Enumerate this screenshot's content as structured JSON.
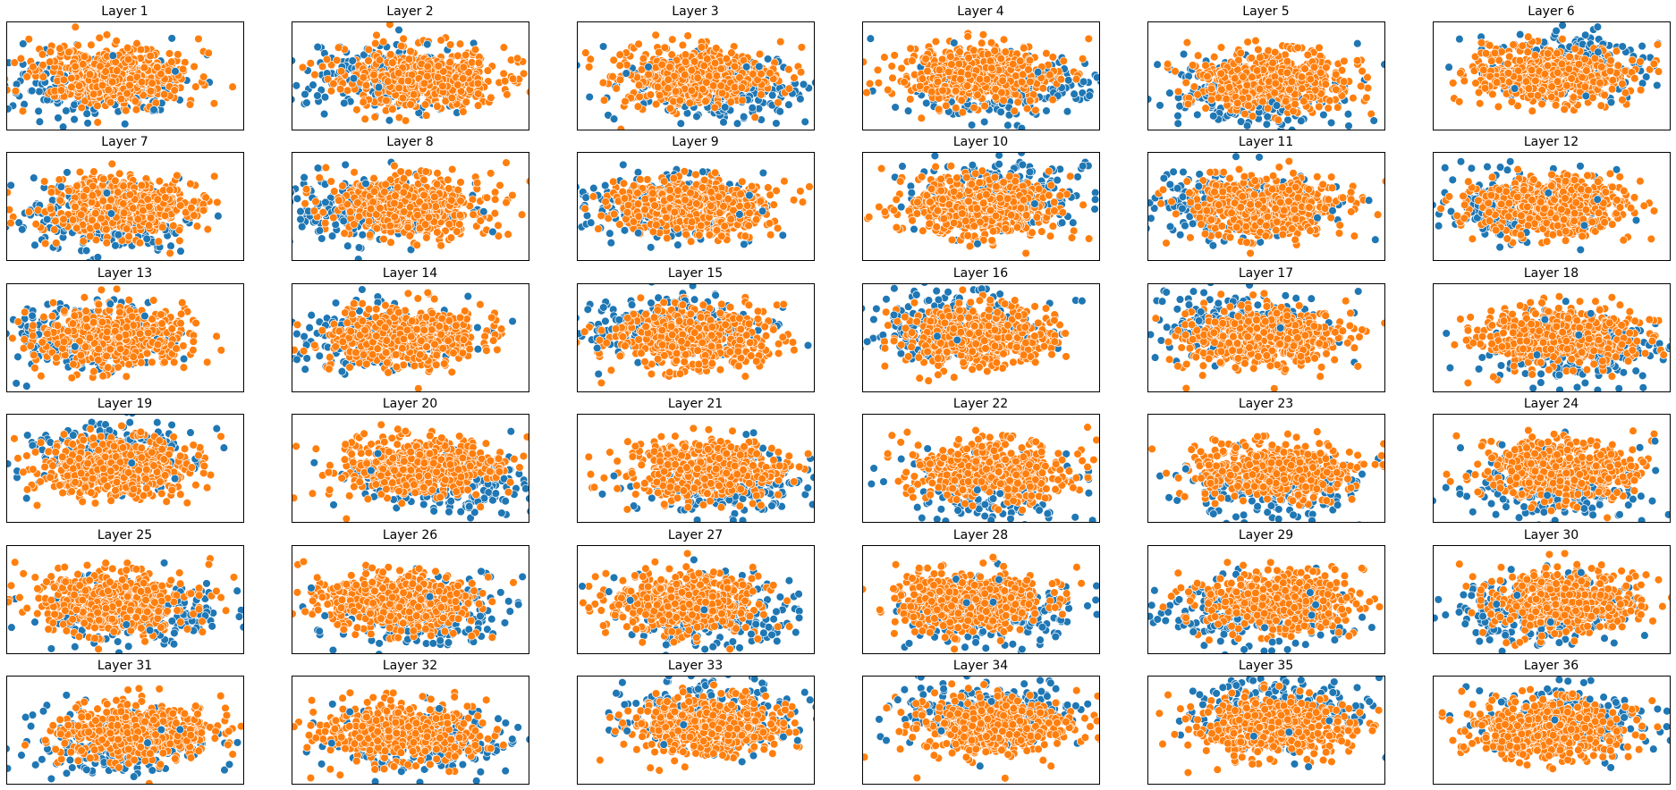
{
  "figure": {
    "colors": {
      "class_a": "#1f77b4",
      "class_b": "#ff7f0e",
      "marker_edge": "#ffffff"
    },
    "marker": "circle-with-white-edge",
    "axes_ticks": "hidden",
    "grid": "off",
    "layout": {
      "rows": 6,
      "cols": 6
    }
  },
  "chart_data": {
    "type": "scatter",
    "description_units": "projected hidden-state coordinates (no axis ticks shown)",
    "series": [
      {
        "color": "#1f77b4"
      },
      {
        "color": "#ff7f0e"
      }
    ],
    "panels": [
      {
        "title": "Layer 1",
        "blue_bias": "left/bottom",
        "orange_center": [
          -0.2,
          0.0
        ]
      },
      {
        "title": "Layer 2",
        "blue_bias": "left",
        "orange_center": [
          0.2,
          0.1
        ]
      },
      {
        "title": "Layer 3",
        "blue_bias": "bottom-right",
        "orange_center": [
          0.0,
          0.1
        ]
      },
      {
        "title": "Layer 4",
        "blue_bias": "bottom-right",
        "orange_center": [
          0.0,
          0.0
        ]
      },
      {
        "title": "Layer 5",
        "blue_bias": "bottom-left",
        "orange_center": [
          0.1,
          0.2
        ]
      },
      {
        "title": "Layer 6",
        "blue_bias": "top-right",
        "orange_center": [
          0.0,
          0.0
        ]
      },
      {
        "title": "Layer 7",
        "blue_bias": "bottom-left",
        "orange_center": [
          0.0,
          0.0
        ]
      },
      {
        "title": "Layer 8",
        "blue_bias": "left",
        "orange_center": [
          0.0,
          0.0
        ]
      },
      {
        "title": "Layer 9",
        "blue_bias": "left",
        "orange_center": [
          0.0,
          0.0
        ]
      },
      {
        "title": "Layer 10",
        "blue_bias": "top-right",
        "orange_center": [
          0.0,
          0.0
        ]
      },
      {
        "title": "Layer 11",
        "blue_bias": "left",
        "orange_center": [
          0.0,
          0.0
        ]
      },
      {
        "title": "Layer 12",
        "blue_bias": "left",
        "orange_center": [
          0.0,
          0.0
        ]
      },
      {
        "title": "Layer 13",
        "blue_bias": "left",
        "orange_center": [
          -0.2,
          0.0
        ]
      },
      {
        "title": "Layer 14",
        "blue_bias": "left",
        "orange_center": [
          -0.1,
          0.0
        ]
      },
      {
        "title": "Layer 15",
        "blue_bias": "top-left",
        "orange_center": [
          -0.1,
          0.0
        ]
      },
      {
        "title": "Layer 16",
        "blue_bias": "top-left",
        "orange_center": [
          -0.1,
          0.0
        ]
      },
      {
        "title": "Layer 17",
        "blue_bias": "top-left",
        "orange_center": [
          -0.1,
          0.0
        ]
      },
      {
        "title": "Layer 18",
        "blue_bias": "bottom-right",
        "orange_center": [
          0.1,
          0.0
        ]
      },
      {
        "title": "Layer 19",
        "blue_bias": "top",
        "orange_center": [
          -0.2,
          0.0
        ]
      },
      {
        "title": "Layer 20",
        "blue_bias": "bottom-right",
        "orange_center": [
          0.2,
          0.0
        ]
      },
      {
        "title": "Layer 21",
        "blue_bias": "bottom-right",
        "orange_center": [
          0.2,
          0.1
        ]
      },
      {
        "title": "Layer 22",
        "blue_bias": "bottom",
        "orange_center": [
          0.2,
          0.1
        ]
      },
      {
        "title": "Layer 23",
        "blue_bias": "bottom",
        "orange_center": [
          0.2,
          0.1
        ]
      },
      {
        "title": "Layer 24",
        "blue_bias": "bottom",
        "orange_center": [
          0.2,
          0.1
        ]
      },
      {
        "title": "Layer 25",
        "blue_bias": "bottom-right",
        "orange_center": [
          -0.2,
          0.1
        ]
      },
      {
        "title": "Layer 26",
        "blue_bias": "bottom-right",
        "orange_center": [
          -0.2,
          0.1
        ]
      },
      {
        "title": "Layer 27",
        "blue_bias": "bottom-right",
        "orange_center": [
          -0.2,
          0.1
        ]
      },
      {
        "title": "Layer 28",
        "blue_bias": "bottom-right",
        "orange_center": [
          -0.2,
          0.1
        ]
      },
      {
        "title": "Layer 29",
        "blue_bias": "bottom-left",
        "orange_center": [
          0.2,
          0.1
        ]
      },
      {
        "title": "Layer 30",
        "blue_bias": "bottom-left",
        "orange_center": [
          0.2,
          0.1
        ]
      },
      {
        "title": "Layer 31",
        "blue_bias": "bottom-left",
        "orange_center": [
          0.2,
          0.1
        ]
      },
      {
        "title": "Layer 32",
        "blue_bias": "bottom-right",
        "orange_center": [
          -0.2,
          0.1
        ]
      },
      {
        "title": "Layer 33",
        "blue_bias": "top",
        "orange_center": [
          0.2,
          -0.1
        ]
      },
      {
        "title": "Layer 34",
        "blue_bias": "top",
        "orange_center": [
          0.2,
          -0.1
        ]
      },
      {
        "title": "Layer 35",
        "blue_bias": "top",
        "orange_center": [
          0.2,
          -0.1
        ]
      },
      {
        "title": "Layer 36",
        "blue_bias": "top-right",
        "orange_center": [
          -0.1,
          0.0
        ]
      }
    ]
  }
}
